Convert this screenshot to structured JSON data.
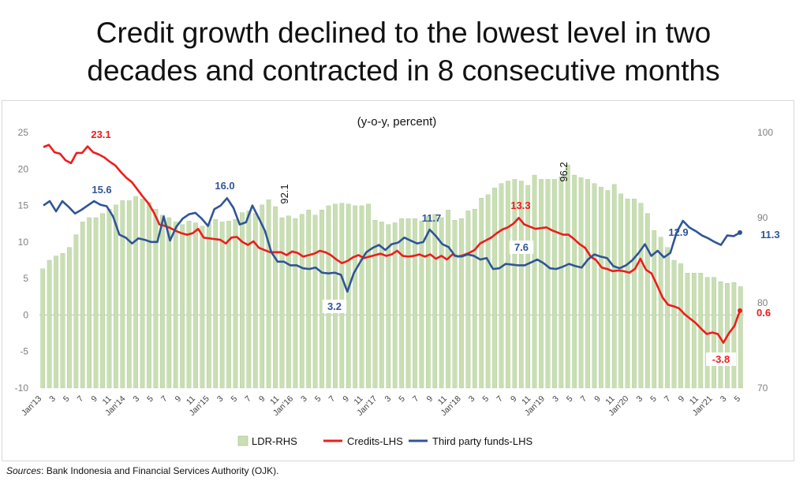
{
  "title_line1": "Credit growth declined to the lowest level in two",
  "title_line2": "decades and contracted in 8 consecutive months",
  "source_label": "Sources",
  "source_text": ": Bank Indonesia and Financial Services Authority (OJK).",
  "chart_data": {
    "type": "bar+line",
    "subtitle": "(y-o-y, percent)",
    "left_axis": {
      "ticks": [
        25,
        20,
        15,
        10,
        5,
        0,
        -5,
        -10
      ],
      "ylim": [
        -10,
        25
      ]
    },
    "right_axis": {
      "ticks": [
        100,
        90,
        80,
        70
      ],
      "ylim": [
        70,
        100
      ]
    },
    "x_tick_labels": [
      "Jan'13",
      "3",
      "5",
      "7",
      "9",
      "11",
      "Jan'14",
      "3",
      "5",
      "7",
      "9",
      "11",
      "Jan'15",
      "3",
      "5",
      "7",
      "9",
      "11",
      "Jan'16",
      "3",
      "5",
      "7",
      "9",
      "11",
      "Jan'17",
      "3",
      "5",
      "7",
      "9",
      "11",
      "Jan'18",
      "3",
      "5",
      "7",
      "9",
      "11",
      "Jan'19",
      "3",
      "5",
      "7",
      "9",
      "11",
      "Jan'20",
      "3",
      "5",
      "7",
      "9",
      "11",
      "Jan'21",
      "3",
      "5"
    ],
    "legend": [
      "LDR-RHS",
      "Credits-LHS",
      "Third party funds-LHS"
    ],
    "colors": {
      "ldr": "#c9dfb3",
      "ldr_edge": "#9cbf80",
      "credits": "#ee1c1c",
      "tpf": "#2f5597",
      "axis_text": "#7f7f7f"
    },
    "series": [
      {
        "name": "LDR-RHS",
        "axis": "right",
        "values": [
          84,
          85,
          85.5,
          85.8,
          86.5,
          88,
          89.5,
          90,
          90,
          90.5,
          91,
          91.5,
          92,
          92,
          92.5,
          92.2,
          91.8,
          91,
          90.3,
          90,
          89.5,
          89.2,
          89.6,
          89.4,
          89,
          89.3,
          89.8,
          89.5,
          89.6,
          89.8,
          90.6,
          90.8,
          90.5,
          91.5,
          92.1,
          91.3,
          90,
          90.2,
          89.9,
          90.4,
          90.9,
          90.3,
          90.9,
          91.4,
          91.6,
          91.7,
          91.6,
          91.4,
          91.4,
          91.6,
          89.7,
          89.5,
          89.2,
          89.4,
          89.9,
          89.9,
          89.9,
          89.6,
          90.1,
          90.4,
          90,
          90.9,
          89.7,
          89.9,
          90.8,
          91,
          92.3,
          92.7,
          93.5,
          94,
          94.3,
          94.5,
          94.3,
          93.8,
          95,
          94.5,
          94.5,
          94.5,
          94.8,
          96.2,
          95,
          94.7,
          94.5,
          94,
          93.6,
          93.2,
          93.9,
          92.8,
          92.2,
          92.2,
          91.7,
          90.5,
          88.5,
          87.7,
          86.5,
          85,
          84.6,
          83.5,
          83.5,
          83.5,
          83,
          83,
          82.5,
          82.3,
          82.4,
          81.9
        ]
      },
      {
        "name": "Credits-LHS",
        "axis": "left",
        "values": [
          23,
          23.3,
          22.3,
          22.1,
          21.2,
          20.8,
          22.2,
          22.2,
          23.1,
          22.3,
          22,
          21.6,
          21,
          20.5,
          19.6,
          18.8,
          18.2,
          17.2,
          16.2,
          15.3,
          14,
          12.4,
          12.2,
          11.9,
          11.5,
          11.2,
          11,
          11.2,
          11.8,
          10.6,
          10.5,
          10.4,
          10.3,
          9.8,
          10.6,
          10.7,
          10,
          9.6,
          10.1,
          9.2,
          8.9,
          8.6,
          8.6,
          8.6,
          8.2,
          8.7,
          8.5,
          8,
          8.2,
          8.4,
          8.8,
          8.6,
          8.2,
          7.6,
          7.1,
          7.4,
          7.9,
          8.2,
          7.8,
          8,
          8.2,
          8.4,
          8.1,
          8.3,
          8.8,
          8.1,
          8,
          8.1,
          8.3,
          8,
          8.3,
          7.7,
          8.1,
          7.6,
          8.3,
          8,
          8.2,
          8.5,
          8.9,
          9.8,
          10.2,
          10.6,
          11.2,
          11.7,
          12,
          12.5,
          13.3,
          12.4,
          12.1,
          11.8,
          11.9,
          12,
          11.6,
          11.3,
          11,
          11,
          10.4,
          9.7,
          9.2,
          8,
          7.5,
          6.5,
          6.3,
          6,
          6.1,
          6,
          5.8,
          6.3,
          7.7,
          6.2,
          5.7,
          4.1,
          2.4,
          1.4,
          1.2,
          0.9,
          0.1,
          -0.5,
          -1.1,
          -1.9,
          -2.6,
          -2.4,
          -2.6,
          -3.8,
          -2.5,
          -1.5,
          0.6
        ]
      },
      {
        "name": "Third party funds-LHS",
        "axis": "left",
        "values": [
          15,
          15.6,
          14.2,
          15.6,
          14.8,
          13.9,
          14.4,
          15,
          15.6,
          15.1,
          14.9,
          13.5,
          11,
          10.6,
          9.8,
          10.5,
          10.3,
          10,
          10,
          13.5,
          10.2,
          12.1,
          13.2,
          13.8,
          14,
          13.2,
          12.2,
          14.5,
          15,
          16,
          14.7,
          12.4,
          12.7,
          15,
          13.3,
          11.5,
          8.6,
          7.3,
          7.3,
          6.8,
          6.8,
          6.4,
          6.3,
          6.5,
          5.8,
          5.7,
          5.8,
          5.5,
          3.2,
          5.7,
          7.2,
          8.6,
          9.2,
          9.6,
          8.9,
          9.7,
          9.9,
          10.6,
          10.2,
          9.8,
          10,
          11.7,
          10.8,
          9.7,
          9.3,
          8.1,
          8,
          8.3,
          8.1,
          7.6,
          7.8,
          6.3,
          6.4,
          7,
          6.9,
          6.8,
          6.8,
          7.2,
          7.6,
          7.1,
          6.4,
          6.3,
          6.6,
          7,
          6.7,
          6.5,
          7.6,
          8.3,
          8,
          7.8,
          6.7,
          6.4,
          6.8,
          7.5,
          8.5,
          9.7,
          8.1,
          8.8,
          7.9,
          8.5,
          11.3,
          12.9,
          12,
          11.5,
          10.9,
          10.5,
          10,
          9.6,
          10.9,
          10.8,
          11.3
        ]
      }
    ],
    "annotations": [
      {
        "text": "23.1",
        "series": "credits"
      },
      {
        "text": "15.6",
        "series": "tpf"
      },
      {
        "text": "16.0",
        "series": "tpf"
      },
      {
        "text": "92.1",
        "series": "ldr"
      },
      {
        "text": "3.2",
        "series": "tpf"
      },
      {
        "text": "11.7",
        "series": "tpf"
      },
      {
        "text": "13.3",
        "series": "credits"
      },
      {
        "text": "7.6",
        "series": "tpf"
      },
      {
        "text": "96.2",
        "series": "ldr"
      },
      {
        "text": "12.9",
        "series": "tpf"
      },
      {
        "text": "-3.8",
        "series": "credits"
      },
      {
        "text": "11.3",
        "series": "tpf"
      },
      {
        "text": "0.6",
        "series": "credits"
      }
    ]
  }
}
